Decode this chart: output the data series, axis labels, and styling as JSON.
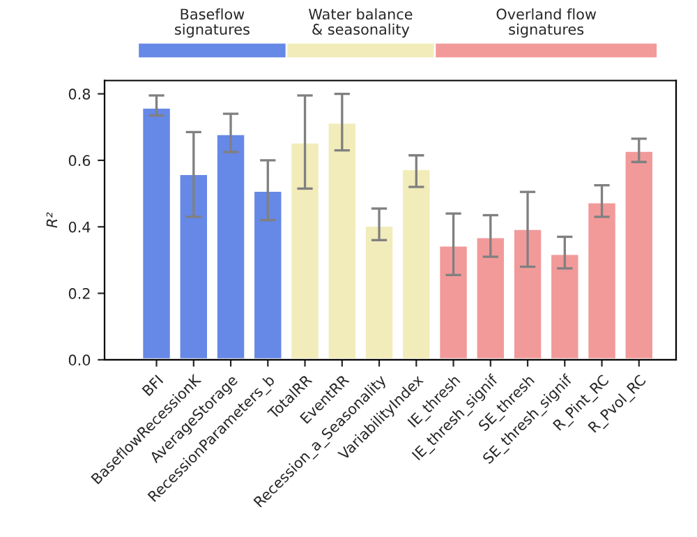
{
  "chart_data": {
    "type": "bar",
    "ylabel": "R²",
    "categories": [
      "BFI",
      "BaseflowRecessionK",
      "AverageStorage",
      "RecessionParameters_b",
      "TotalRR",
      "EventRR",
      "Recession_a_Seasonality",
      "VariabilityIndex",
      "IE_thresh",
      "IE_thresh_signif",
      "SE_thresh",
      "SE_thresh_signif",
      "R_Pint_RC",
      "R_Pvol_RC"
    ],
    "series": [
      {
        "color": "#6688e6",
        "values": [
          0.76,
          0.56,
          0.68,
          0.51,
          null,
          null,
          null,
          null,
          null,
          null,
          null,
          null,
          null,
          null
        ],
        "errors": [
          [
            0.735,
            0.795
          ],
          [
            0.43,
            0.685
          ],
          [
            0.625,
            0.74
          ],
          [
            0.42,
            0.6
          ],
          null,
          null,
          null,
          null,
          null,
          null,
          null,
          null,
          null,
          null
        ]
      },
      {
        "color": "#f2ecba",
        "values": [
          null,
          null,
          null,
          null,
          0.655,
          0.715,
          0.405,
          0.575,
          null,
          null,
          null,
          null,
          null,
          null
        ],
        "errors": [
          null,
          null,
          null,
          null,
          [
            0.515,
            0.795
          ],
          [
            0.63,
            0.8
          ],
          [
            0.36,
            0.455
          ],
          [
            0.52,
            0.615
          ],
          null,
          null,
          null,
          null,
          null,
          null
        ]
      },
      {
        "color": "#f29a9a",
        "values": [
          null,
          null,
          null,
          null,
          null,
          null,
          null,
          null,
          0.345,
          0.37,
          0.395,
          0.32,
          0.475,
          0.63
        ],
        "errors": [
          null,
          null,
          null,
          null,
          null,
          null,
          null,
          null,
          [
            0.255,
            0.44
          ],
          [
            0.31,
            0.435
          ],
          [
            0.28,
            0.505
          ],
          [
            0.275,
            0.37
          ],
          [
            0.43,
            0.525
          ],
          [
            0.595,
            0.665
          ]
        ]
      }
    ],
    "ylim": [
      0,
      0.84
    ],
    "yticks": [
      {
        "value": 0,
        "label": "0.0"
      },
      0.2,
      0.4,
      0.6,
      0.8
    ],
    "grid": false,
    "annotations": [
      "Baseflow\nsignatures",
      "Water balance\n& seasonality",
      "Overland flow\nsignatures"
    ]
  }
}
